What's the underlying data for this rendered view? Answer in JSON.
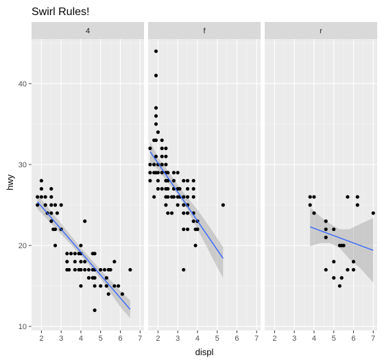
{
  "chart_data": {
    "type": "scatter",
    "title": "Swirl Rules!",
    "xlabel": "displ",
    "ylabel": "hwy",
    "xlim": [
      1.5,
      7.2
    ],
    "ylim": [
      9.5,
      45.5
    ],
    "x_ticks": [
      2,
      3,
      4,
      5,
      6,
      7
    ],
    "y_ticks": [
      10,
      20,
      30,
      40
    ],
    "grid": true,
    "facet_var": "drv",
    "colors": {
      "panel_bg": "#ebebeb",
      "strip_bg": "#d9d9d9",
      "grid_major": "#ffffff",
      "grid_minor": "#f5f5f5",
      "point": "#000000",
      "line": "#3366ff",
      "ribbon": "#999999"
    },
    "panels": [
      {
        "label": "4",
        "points": [
          [
            1.8,
            26
          ],
          [
            1.8,
            25
          ],
          [
            2.0,
            28
          ],
          [
            2.0,
            27
          ],
          [
            2.0,
            26
          ],
          [
            2.2,
            26
          ],
          [
            2.2,
            25
          ],
          [
            2.3,
            24
          ],
          [
            2.5,
            27
          ],
          [
            2.5,
            26
          ],
          [
            2.5,
            25
          ],
          [
            2.5,
            24
          ],
          [
            2.5,
            23
          ],
          [
            2.6,
            22
          ],
          [
            2.7,
            25
          ],
          [
            2.7,
            22
          ],
          [
            2.7,
            20
          ],
          [
            2.8,
            24
          ],
          [
            3.0,
            25
          ],
          [
            3.0,
            22
          ],
          [
            3.3,
            19
          ],
          [
            3.3,
            18
          ],
          [
            3.3,
            17
          ],
          [
            3.4,
            17
          ],
          [
            3.5,
            19
          ],
          [
            3.7,
            19
          ],
          [
            3.7,
            18
          ],
          [
            3.7,
            17
          ],
          [
            3.9,
            19
          ],
          [
            3.9,
            17
          ],
          [
            4.0,
            20
          ],
          [
            4.0,
            19
          ],
          [
            4.0,
            18
          ],
          [
            4.0,
            17
          ],
          [
            4.0,
            15
          ],
          [
            4.2,
            23
          ],
          [
            4.2,
            18
          ],
          [
            4.2,
            17
          ],
          [
            4.4,
            17
          ],
          [
            4.4,
            16
          ],
          [
            4.6,
            19
          ],
          [
            4.6,
            17
          ],
          [
            4.6,
            16
          ],
          [
            4.7,
            19
          ],
          [
            4.7,
            17
          ],
          [
            4.7,
            16
          ],
          [
            4.7,
            15
          ],
          [
            4.7,
            12
          ],
          [
            5.0,
            17
          ],
          [
            5.0,
            15
          ],
          [
            5.2,
            17
          ],
          [
            5.3,
            16
          ],
          [
            5.3,
            15
          ],
          [
            5.4,
            17
          ],
          [
            5.4,
            14
          ],
          [
            5.5,
            17
          ],
          [
            5.7,
            18
          ],
          [
            5.7,
            15
          ],
          [
            5.9,
            15
          ],
          [
            6.1,
            14
          ],
          [
            6.5,
            17
          ]
        ],
        "fit": [
          [
            1.8,
            25.4
          ],
          [
            6.5,
            12.1
          ]
        ],
        "band": {
          "upper": [
            [
              1.8,
              26.3
            ],
            [
              3.0,
              22.7
            ],
            [
              4.0,
              19.7
            ],
            [
              5.0,
              17.0
            ],
            [
              6.0,
              14.4
            ],
            [
              6.5,
              13.2
            ]
          ],
          "lower": [
            [
              1.8,
              24.5
            ],
            [
              3.0,
              21.4
            ],
            [
              4.0,
              18.8
            ],
            [
              5.0,
              15.9
            ],
            [
              6.0,
              12.4
            ],
            [
              6.5,
              11.0
            ]
          ]
        }
      },
      {
        "label": "f",
        "points": [
          [
            1.6,
            32
          ],
          [
            1.6,
            30
          ],
          [
            1.6,
            29
          ],
          [
            1.6,
            28
          ],
          [
            1.8,
            33
          ],
          [
            1.8,
            30
          ],
          [
            1.8,
            29
          ],
          [
            1.8,
            26
          ],
          [
            1.9,
            44
          ],
          [
            1.9,
            41
          ],
          [
            1.9,
            37
          ],
          [
            1.9,
            36
          ],
          [
            1.9,
            35
          ],
          [
            1.9,
            33
          ],
          [
            1.9,
            31
          ],
          [
            1.9,
            29
          ],
          [
            2.0,
            34
          ],
          [
            2.0,
            30
          ],
          [
            2.0,
            29
          ],
          [
            2.0,
            28
          ],
          [
            2.0,
            27
          ],
          [
            2.2,
            33
          ],
          [
            2.2,
            32
          ],
          [
            2.2,
            31
          ],
          [
            2.2,
            30
          ],
          [
            2.2,
            29
          ],
          [
            2.2,
            27
          ],
          [
            2.4,
            32
          ],
          [
            2.4,
            31
          ],
          [
            2.4,
            30
          ],
          [
            2.4,
            29
          ],
          [
            2.4,
            28
          ],
          [
            2.4,
            27
          ],
          [
            2.4,
            26
          ],
          [
            2.4,
            25
          ],
          [
            2.5,
            29
          ],
          [
            2.5,
            28
          ],
          [
            2.5,
            27
          ],
          [
            2.5,
            26
          ],
          [
            2.5,
            24
          ],
          [
            2.7,
            26
          ],
          [
            2.7,
            24
          ],
          [
            2.8,
            29
          ],
          [
            2.8,
            28
          ],
          [
            2.8,
            27
          ],
          [
            2.8,
            26
          ],
          [
            3.0,
            29
          ],
          [
            3.0,
            27
          ],
          [
            3.0,
            26
          ],
          [
            3.0,
            25
          ],
          [
            3.1,
            27
          ],
          [
            3.1,
            26
          ],
          [
            3.3,
            28
          ],
          [
            3.3,
            26
          ],
          [
            3.3,
            25
          ],
          [
            3.3,
            24
          ],
          [
            3.3,
            22
          ],
          [
            3.3,
            17
          ],
          [
            3.5,
            28
          ],
          [
            3.5,
            27
          ],
          [
            3.5,
            26
          ],
          [
            3.5,
            25
          ],
          [
            3.5,
            24
          ],
          [
            3.5,
            22
          ],
          [
            3.8,
            28
          ],
          [
            3.8,
            27
          ],
          [
            3.8,
            26
          ],
          [
            3.8,
            24
          ],
          [
            3.8,
            23
          ],
          [
            3.9,
            22
          ],
          [
            3.9,
            20
          ],
          [
            4.0,
            23
          ],
          [
            4.0,
            22
          ],
          [
            5.3,
            25
          ]
        ],
        "fit": [
          [
            1.6,
            31.6
          ],
          [
            5.3,
            18.4
          ]
        ],
        "band": {
          "upper": [
            [
              1.6,
              32.8
            ],
            [
              2.0,
              30.9
            ],
            [
              2.5,
              29.2
            ],
            [
              3.0,
              27.5
            ],
            [
              3.5,
              25.9
            ],
            [
              4.0,
              24.4
            ],
            [
              4.5,
              22.7
            ],
            [
              5.0,
              20.9
            ],
            [
              5.3,
              19.8
            ]
          ],
          "lower": [
            [
              1.6,
              30.4
            ],
            [
              2.0,
              29.3
            ],
            [
              2.5,
              27.8
            ],
            [
              3.0,
              26.3
            ],
            [
              3.5,
              24.4
            ],
            [
              4.0,
              22.0
            ],
            [
              4.5,
              19.7
            ],
            [
              5.0,
              17.3
            ],
            [
              5.3,
              16.0
            ]
          ]
        }
      },
      {
        "label": "r",
        "points": [
          [
            3.8,
            26
          ],
          [
            3.8,
            25
          ],
          [
            4.0,
            26
          ],
          [
            4.0,
            24
          ],
          [
            4.6,
            23
          ],
          [
            4.6,
            22
          ],
          [
            4.6,
            21
          ],
          [
            4.6,
            17
          ],
          [
            5.0,
            22
          ],
          [
            5.0,
            18
          ],
          [
            5.0,
            16
          ],
          [
            5.3,
            20
          ],
          [
            5.3,
            15
          ],
          [
            5.4,
            20
          ],
          [
            5.4,
            16
          ],
          [
            5.5,
            20
          ],
          [
            5.7,
            26
          ],
          [
            5.7,
            17
          ],
          [
            6.0,
            17
          ],
          [
            6.0,
            18
          ],
          [
            6.2,
            26
          ],
          [
            6.2,
            25
          ],
          [
            7.0,
            24
          ]
        ],
        "fit": [
          [
            3.8,
            22.3
          ],
          [
            7.0,
            19.4
          ]
        ],
        "band": {
          "upper": [
            [
              3.8,
              24.7
            ],
            [
              4.3,
              23.6
            ],
            [
              4.8,
              22.7
            ],
            [
              5.3,
              22.0
            ],
            [
              5.8,
              22.0
            ],
            [
              6.3,
              22.6
            ],
            [
              7.0,
              23.4
            ]
          ],
          "lower": [
            [
              3.8,
              19.9
            ],
            [
              4.3,
              20.3
            ],
            [
              4.8,
              20.3
            ],
            [
              5.3,
              19.7
            ],
            [
              5.8,
              18.3
            ],
            [
              6.3,
              17.3
            ],
            [
              7.0,
              15.4
            ]
          ]
        }
      }
    ]
  }
}
